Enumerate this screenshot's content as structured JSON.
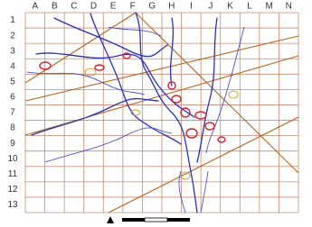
{
  "map": {
    "columns": [
      "A",
      "B",
      "C",
      "D",
      "E",
      "F",
      "G",
      "H",
      "I",
      "J",
      "K",
      "L",
      "M",
      "N"
    ],
    "rows": [
      "1",
      "2",
      "3",
      "4",
      "5",
      "6",
      "7",
      "8",
      "9",
      "10",
      "11",
      "12",
      "13"
    ]
  }
}
